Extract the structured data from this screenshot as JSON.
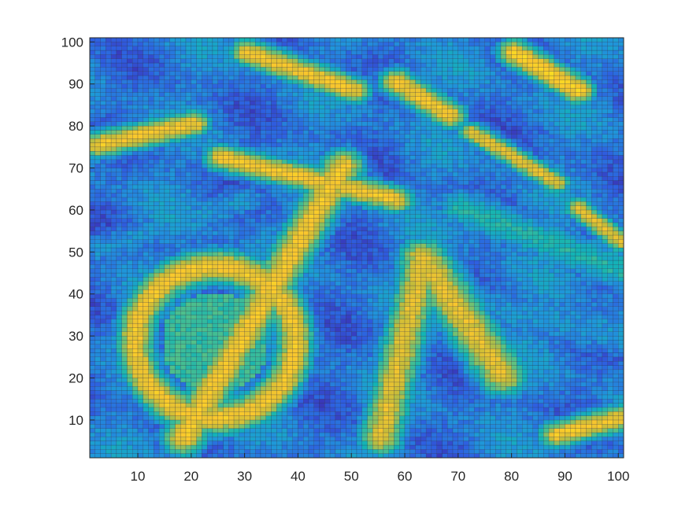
{
  "chart_data": {
    "type": "heatmap",
    "title": "",
    "xlabel": "",
    "ylabel": "",
    "xlim": [
      1,
      101
    ],
    "ylim": [
      1,
      101
    ],
    "grid_size": [
      100,
      100
    ],
    "x_ticks": [
      10,
      20,
      30,
      40,
      50,
      60,
      70,
      80,
      90,
      100
    ],
    "y_ticks": [
      10,
      20,
      30,
      40,
      50,
      60,
      70,
      80,
      90,
      100
    ],
    "x_tick_labels": [
      "10",
      "20",
      "30",
      "40",
      "50",
      "60",
      "70",
      "80",
      "90",
      "100"
    ],
    "y_tick_labels": [
      "10",
      "20",
      "30",
      "40",
      "50",
      "60",
      "70",
      "80",
      "90",
      "100"
    ],
    "colormap": [
      "#3e26a8",
      "#2e5fe0",
      "#1f96da",
      "#13b4b4",
      "#59c184",
      "#c3bc3a",
      "#f9c62d",
      "#f9e91d"
    ],
    "cell_edge_color": "#1f1f3a",
    "value_range": [
      0,
      1
    ],
    "features": [
      {
        "shape": "ring",
        "center": [
          24,
          28
        ],
        "radius": [
          15,
          18
        ],
        "width": 6,
        "peak": 0.85
      },
      {
        "shape": "blob",
        "center": [
          24,
          28
        ],
        "radius": [
          10,
          12
        ],
        "peak": 0.5
      },
      {
        "shape": "band",
        "from": [
          18,
          5
        ],
        "to": [
          48,
          70
        ],
        "width": 5,
        "peak": 0.85
      },
      {
        "shape": "band",
        "from": [
          2,
          75
        ],
        "to": [
          20,
          80
        ],
        "width": 4,
        "peak": 0.85
      },
      {
        "shape": "band",
        "from": [
          25,
          72
        ],
        "to": [
          58,
          62
        ],
        "width": 4,
        "peak": 0.85
      },
      {
        "shape": "band",
        "from": [
          55,
          5
        ],
        "to": [
          63,
          48
        ],
        "width": 5,
        "peak": 0.8
      },
      {
        "shape": "band",
        "from": [
          63,
          48
        ],
        "to": [
          78,
          20
        ],
        "width": 6,
        "peak": 0.8
      },
      {
        "shape": "band",
        "from": [
          30,
          97
        ],
        "to": [
          50,
          88
        ],
        "width": 4,
        "peak": 0.85
      },
      {
        "shape": "band",
        "from": [
          58,
          90
        ],
        "to": [
          68,
          82
        ],
        "width": 4,
        "peak": 0.85
      },
      {
        "shape": "band",
        "from": [
          72,
          78
        ],
        "to": [
          88,
          66
        ],
        "width": 3,
        "peak": 0.8
      },
      {
        "shape": "band",
        "from": [
          80,
          97
        ],
        "to": [
          92,
          88
        ],
        "width": 4,
        "peak": 0.9
      },
      {
        "shape": "band",
        "from": [
          92,
          60
        ],
        "to": [
          100,
          52
        ],
        "width": 3,
        "peak": 0.8
      },
      {
        "shape": "band",
        "from": [
          88,
          6
        ],
        "to": [
          100,
          10
        ],
        "width": 4,
        "peak": 0.85
      },
      {
        "shape": "band",
        "from": [
          70,
          60
        ],
        "to": [
          100,
          45
        ],
        "width": 6,
        "peak": 0.45
      },
      {
        "shape": "band",
        "from": [
          2,
          50
        ],
        "to": [
          30,
          62
        ],
        "width": 5,
        "peak": 0.3
      },
      {
        "shape": "band",
        "from": [
          60,
          40
        ],
        "to": [
          100,
          30
        ],
        "width": 8,
        "peak": 0.3
      }
    ]
  }
}
